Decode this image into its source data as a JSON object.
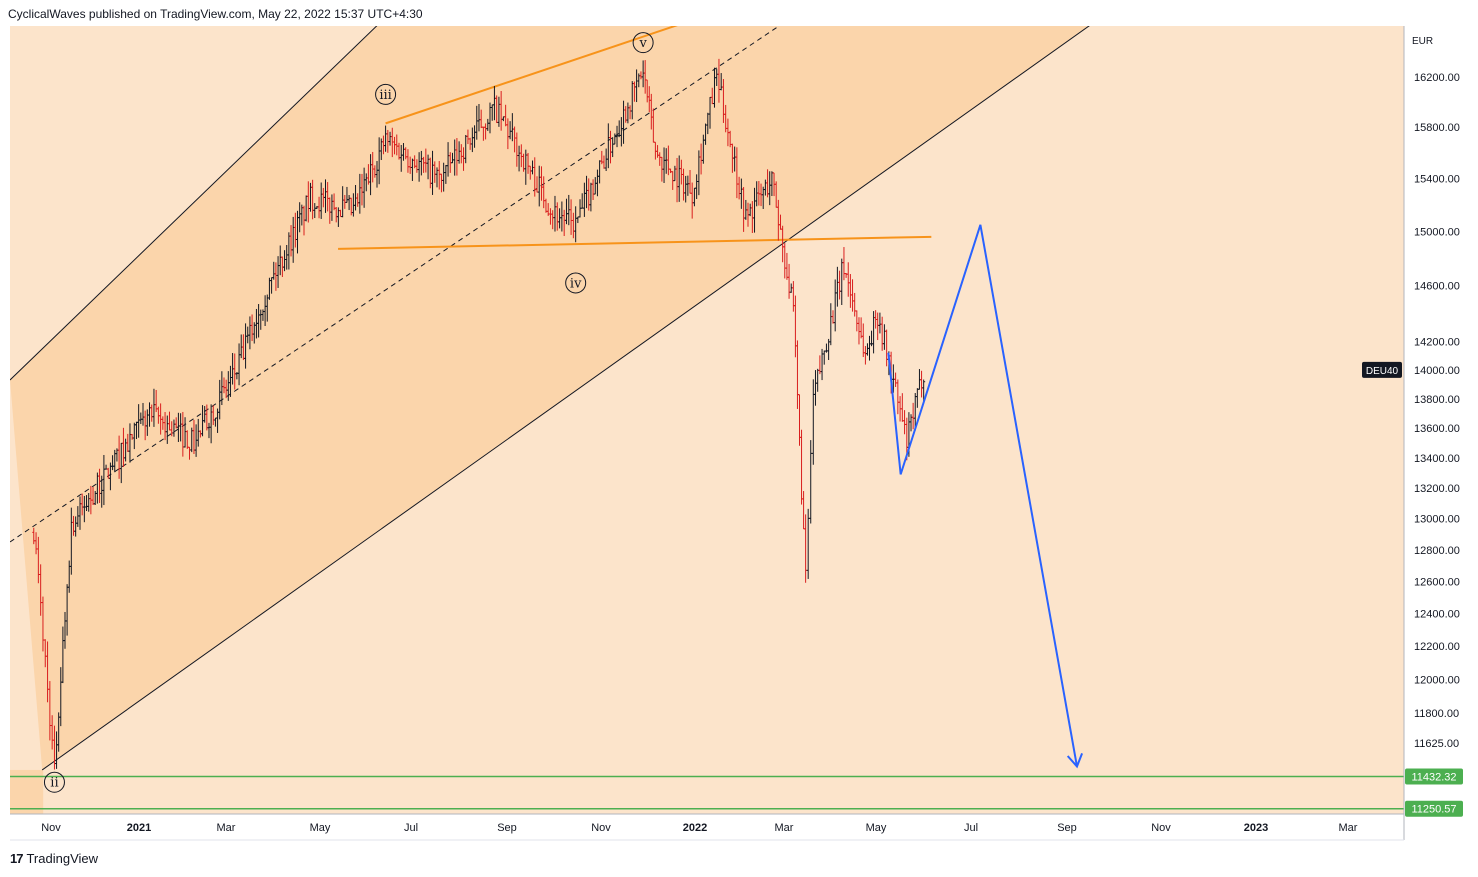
{
  "header": {
    "publish_text": "CyclicalWaves published on TradingView.com, May 22, 2022 15:37 UTC+4:30"
  },
  "footer": {
    "logo_glyph": "17",
    "brand": "TradingView"
  },
  "colors": {
    "background": "#fce4cb",
    "channel_fill": "#fbd5ab",
    "bar_up": "#131722",
    "bar_down": "#d91e1e",
    "triangle": "#f7931a",
    "projection": "#2962ff",
    "support": "#4caf50",
    "channel_line": "#131722"
  },
  "chart_data": {
    "type": "ohlc",
    "symbol": "DEU40",
    "currency": "EUR",
    "x_axis_ticks": [
      "Nov",
      "2021",
      "Mar",
      "May",
      "Jul",
      "Sep",
      "Nov",
      "2022",
      "Mar",
      "May",
      "Jul",
      "Sep",
      "Nov",
      "2023",
      "Mar"
    ],
    "y_axis_ticks": [
      "16200.00",
      "15800.00",
      "15400.00",
      "15000.00",
      "14600.00",
      "14200.00",
      "14000.00",
      "13800.00",
      "13600.00",
      "13400.00",
      "13200.00",
      "13000.00",
      "12800.00",
      "12600.00",
      "12400.00",
      "12200.00",
      "12000.00",
      "11800.00",
      "11625.00"
    ],
    "last_price_label": "DEU40",
    "last_price": 14000,
    "support_levels": [
      {
        "label": "11432.32",
        "value": 11432.32
      },
      {
        "label": "11250.57",
        "value": 11250.57
      }
    ],
    "wave_labels": [
      {
        "label": "ii",
        "date": "2020-10-30",
        "price": 11400
      },
      {
        "label": "iii",
        "date": "2021-06-03",
        "price": 16060
      },
      {
        "label": "iv",
        "date": "2021-10-05",
        "price": 14620
      },
      {
        "label": "v",
        "date": "2021-11-18",
        "price": 16480
      }
    ],
    "anchors": [
      {
        "date": "2020-10-15",
        "price": 13100
      },
      {
        "date": "2020-10-30",
        "price": 11450
      },
      {
        "date": "2020-11-10",
        "price": 12950
      },
      {
        "date": "2020-12-31",
        "price": 13700
      },
      {
        "date": "2021-01-29",
        "price": 13500
      },
      {
        "date": "2021-02-26",
        "price": 14000
      },
      {
        "date": "2021-03-15",
        "price": 14500
      },
      {
        "date": "2021-04-15",
        "price": 15250
      },
      {
        "date": "2021-05-13",
        "price": 15150
      },
      {
        "date": "2021-06-03",
        "price": 15700
      },
      {
        "date": "2021-07-08",
        "price": 15400
      },
      {
        "date": "2021-08-13",
        "price": 15950
      },
      {
        "date": "2021-09-20",
        "price": 15150
      },
      {
        "date": "2021-10-05",
        "price": 15050
      },
      {
        "date": "2021-11-18",
        "price": 16250
      },
      {
        "date": "2021-11-26",
        "price": 15600
      },
      {
        "date": "2021-12-20",
        "price": 15300
      },
      {
        "date": "2022-01-05",
        "price": 16200
      },
      {
        "date": "2022-01-24",
        "price": 15100
      },
      {
        "date": "2022-02-10",
        "price": 15400
      },
      {
        "date": "2022-02-24",
        "price": 14400
      },
      {
        "date": "2022-03-04",
        "price": 12600
      },
      {
        "date": "2022-03-09",
        "price": 13800
      },
      {
        "date": "2022-03-29",
        "price": 14750
      },
      {
        "date": "2022-04-12",
        "price": 14100
      },
      {
        "date": "2022-04-20",
        "price": 14400
      },
      {
        "date": "2022-05-09",
        "price": 13500
      },
      {
        "date": "2022-05-20",
        "price": 14000
      }
    ],
    "channel": {
      "upper": [
        {
          "date": "2020-10-01",
          "price": 13930
        },
        {
          "date": "2021-06-12",
          "price": 16800
        }
      ],
      "middle": [
        {
          "date": "2020-10-01",
          "price": 12850
        },
        {
          "date": "2022-03-08",
          "price": 16800
        }
      ],
      "lower": [
        {
          "date": "2020-10-22",
          "price": 11470
        },
        {
          "date": "2022-09-25",
          "price": 16800
        }
      ]
    },
    "triangle_lines": [
      [
        {
          "date": "2021-06-03",
          "price": 15830
        },
        {
          "date": "2021-12-28",
          "price": 16700
        }
      ],
      [
        {
          "date": "2021-05-03",
          "price": 14870
        },
        {
          "date": "2022-05-25",
          "price": 14960
        }
      ]
    ],
    "projection_path": [
      {
        "date": "2022-04-27",
        "price": 14120
      },
      {
        "date": "2022-05-05",
        "price": 13290
      },
      {
        "date": "2022-06-26",
        "price": 15050
      },
      {
        "date": "2022-08-28",
        "price": 11490
      }
    ]
  }
}
